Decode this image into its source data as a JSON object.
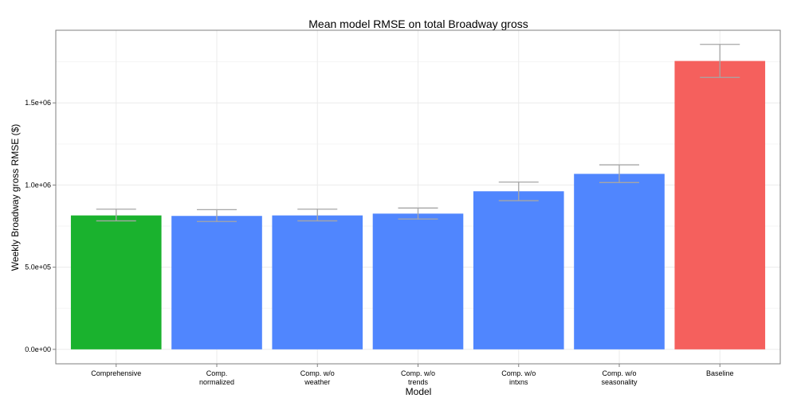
{
  "chart_data": {
    "type": "bar",
    "title": "Mean model RMSE on total Broadway gross",
    "xlabel": "Model",
    "ylabel": "Weekly Broadway gross RMSE ($)",
    "categories": [
      [
        "Comprehensive"
      ],
      [
        "Comp.",
        "normalized"
      ],
      [
        "Comp. w/o",
        "weather"
      ],
      [
        "Comp. w/o",
        "trends"
      ],
      [
        "Comp. w/o",
        "intxns"
      ],
      [
        "Comp. w/o",
        "seasonality"
      ],
      [
        "Baseline"
      ]
    ],
    "values": [
      815000,
      812000,
      815000,
      826000,
      962000,
      1068000,
      1755000
    ],
    "error_low": [
      782000,
      778000,
      782000,
      793000,
      905000,
      1015000,
      1655000
    ],
    "error_high": [
      853000,
      850000,
      853000,
      860000,
      1018000,
      1123000,
      1856000
    ],
    "colors": [
      "#1ab22e",
      "#5086fe",
      "#5086fe",
      "#5086fe",
      "#5086fe",
      "#5086fe",
      "#f5605d"
    ],
    "error_color": "#a6a6a6",
    "yticks": [
      0,
      500000,
      1000000,
      1500000
    ],
    "ytick_labels": [
      "0.0e+00",
      "5.0e+05",
      "1.0e+06",
      "1.5e+06"
    ],
    "ylim": [
      -88000,
      1942000
    ],
    "grid": true
  }
}
